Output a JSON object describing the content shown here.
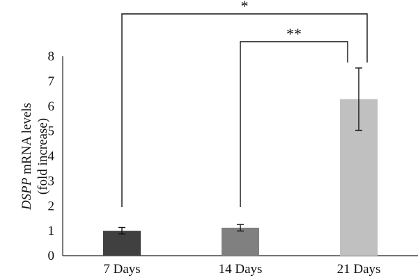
{
  "chart_data": {
    "type": "bar",
    "categories": [
      "7 Days",
      "14 Days",
      "21 Days"
    ],
    "values": [
      1.0,
      1.12,
      6.28
    ],
    "errors": [
      0.13,
      0.13,
      1.25
    ],
    "colors": [
      "#404040",
      "#808080",
      "#c0c0c0"
    ],
    "ylim": [
      0,
      8
    ],
    "yticks": [
      "0",
      "1",
      "2",
      "3",
      "4",
      "5",
      "6",
      "7",
      "8"
    ],
    "ylabel": {
      "line1_italic": "DSPP",
      "line1_rest": " mRNA levels",
      "line2": "(fold increase)"
    },
    "xlabel": "",
    "grid": false,
    "significance": [
      {
        "from": "7 Days",
        "to": "21 Days",
        "label": "*"
      },
      {
        "from": "14 Days",
        "to": "21 Days",
        "label": "**"
      }
    ]
  }
}
